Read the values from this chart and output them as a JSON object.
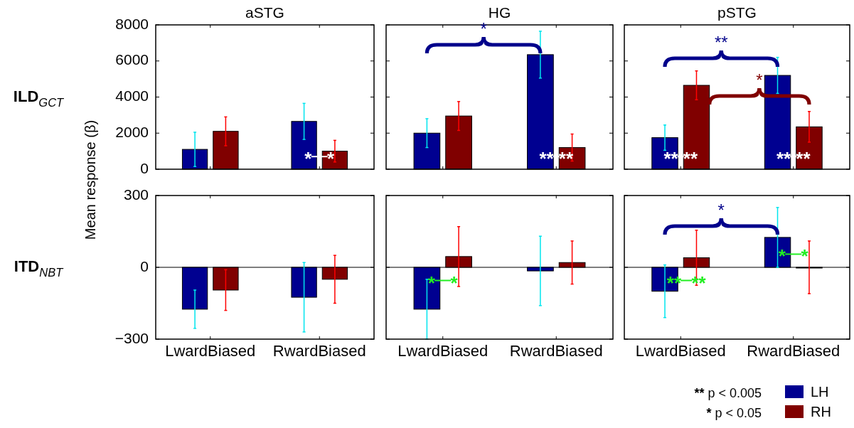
{
  "chart_data": [
    {
      "type": "bar",
      "title": "aSTG",
      "categories": [
        "LwardBiased",
        "RwardBiased"
      ],
      "series": [
        {
          "color": "#000090",
          "values": [
            1100,
            2650
          ],
          "errors": [
            950,
            1000
          ]
        },
        {
          "color": "#800000",
          "values": [
            2100,
            1000
          ],
          "errors": [
            800,
            600
          ]
        }
      ],
      "ylim": [
        0,
        8000
      ],
      "yticks": [
        0,
        2000,
        4000,
        6000,
        8000
      ],
      "tick_labels": "y",
      "legend": false,
      "annotations": [
        {
          "text": "*   *",
          "x": "RwardBiased",
          "y": 700
        },
        "ILD$_{GCT}$"
      ]
    },
    {
      "type": "bar",
      "title": "HG",
      "categories": [
        "LwardBiased",
        "RwardBiased"
      ],
      "series": [
        {
          "color": "#000090",
          "values": [
            2000,
            6350
          ],
          "errors": [
            800,
            1300
          ]
        },
        {
          "color": "#800000",
          "values": [
            2950,
            1200
          ],
          "errors": [
            800,
            750
          ]
        }
      ],
      "ylim": [
        0,
        8000
      ],
      "yticks": [
        0,
        2000,
        4000,
        6000,
        8000
      ],
      "tick_labels": false,
      "legend": false,
      "annotations": [
        "*",
        {
          "text": "** **",
          "x": "RwardBiased",
          "y": 700
        }
      ]
    },
    {
      "type": "bar",
      "title": "pSTG",
      "categories": [
        "LwardBiased",
        "RwardBiased"
      ],
      "series": [
        {
          "color": "#000090",
          "values": [
            1750,
            5200
          ],
          "errors": [
            700,
            1000
          ]
        },
        {
          "color": "#800000",
          "values": [
            4650,
            2350
          ],
          "errors": [
            800,
            850
          ]
        }
      ],
      "ylim": [
        0,
        8000
      ],
      "yticks": [
        0,
        2000,
        4000,
        6000,
        8000
      ],
      "tick_labels": false,
      "legend": false,
      "annotations": [
        "**",
        "*",
        {
          "text": "** **",
          "x": "LwardBiased",
          "y": 700
        },
        {
          "text": "** **",
          "x": "RwardBiased",
          "y": 700
        }
      ]
    },
    {
      "type": "bar",
      "ylabel": "Mean response (β)",
      "categories": [
        "LwardBiased",
        "RwardBiased"
      ],
      "series": [
        {
          "color": "#000090",
          "values": [
            -175,
            -125
          ],
          "errors": [
            80,
            145
          ]
        },
        {
          "color": "#800000",
          "values": [
            -95,
            -50
          ],
          "errors": [
            85,
            100
          ]
        }
      ],
      "ylim": [
        -300,
        300
      ],
      "yticks": [
        -300,
        0,
        300
      ],
      "legend": false,
      "ref_lines": [
        {
          "axis": "y",
          "value": 0,
          "color": "#000000"
        }
      ],
      "annotations": [
        "ITD$_{NBT}$"
      ]
    },
    {
      "type": "bar",
      "categories": [
        "LwardBiased",
        "RwardBiased"
      ],
      "series": [
        {
          "color": "#000090",
          "values": [
            -175,
            -15
          ],
          "errors": [
            125,
            145
          ]
        },
        {
          "color": "#800000",
          "values": [
            45,
            20
          ],
          "errors": [
            125,
            90
          ]
        }
      ],
      "ylim": [
        -300,
        300
      ],
      "yticks": [
        -300,
        0,
        300
      ],
      "tick_labels": "x",
      "legend": false,
      "ref_lines": [
        {
          "axis": "y",
          "value": 0,
          "color": "#000000"
        }
      ],
      "annotations": [
        {
          "text": "*   *",
          "x": "LwardBiased",
          "y": -55
        }
      ]
    },
    {
      "type": "bar",
      "categories": [
        "LwardBiased",
        "RwardBiased"
      ],
      "series": [
        {
          "name": "LH",
          "color": "#000090",
          "values": [
            -100,
            125
          ],
          "errors": [
            110,
            125
          ]
        },
        {
          "name": "RH",
          "color": "#800000",
          "values": [
            40,
            0
          ],
          "errors": [
            115,
            110
          ]
        }
      ],
      "ylim": [
        -300,
        300
      ],
      "yticks": [
        -300,
        0,
        300
      ],
      "tick_labels": "x",
      "legend": "bottom right",
      "ref_lines": [
        {
          "axis": "y",
          "value": 0,
          "color": "#000000"
        }
      ],
      "annotations": [
        {
          "text": "**  **",
          "x": "LwardBiased",
          "y": -55
        },
        {
          "text": "*   *",
          "x": "RwardBiased",
          "y": 55
        },
        "*",
        "** p < 0.005",
        "* p < 0.05"
      ]
    }
  ]
}
